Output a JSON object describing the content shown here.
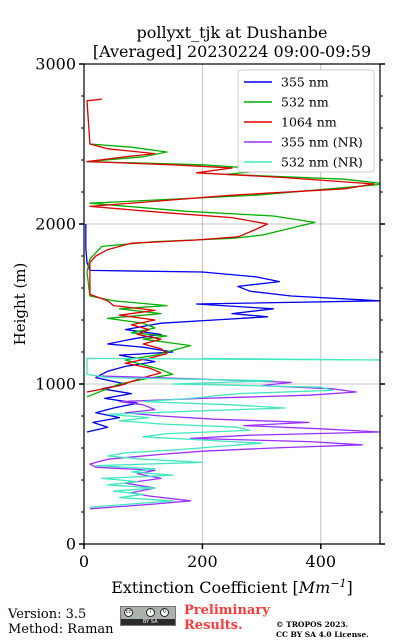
{
  "chart_data": {
    "type": "line",
    "title": "pollyxt_tjk at Dushanbe",
    "subtitle": "[Averaged] 20230224 09:00-09:59",
    "xlabel_main": "Extinction Coefficient [",
    "xlabel_unit": "Mm",
    "xlabel_exp": "−1",
    "xlabel_close": "]",
    "ylabel": "Height (m)",
    "xlim": [
      0,
      500
    ],
    "ylim": [
      0,
      3000
    ],
    "xticks": [
      0,
      200,
      400
    ],
    "yticks": [
      0,
      1000,
      2000,
      3000
    ],
    "xtick_labels": [
      "0",
      "200",
      "400"
    ],
    "ytick_labels": [
      "0",
      "1000",
      "2000",
      "3000"
    ],
    "grid": true,
    "legend_position": "top-right",
    "series": [
      {
        "name": "355 nm",
        "color": "#0000ee",
        "points": [
          [
            5,
            700
          ],
          [
            40,
            730
          ],
          [
            15,
            760
          ],
          [
            60,
            790
          ],
          [
            20,
            820
          ],
          [
            50,
            850
          ],
          [
            90,
            880
          ],
          [
            35,
            910
          ],
          [
            80,
            940
          ],
          [
            30,
            970
          ],
          [
            70,
            1000
          ],
          [
            20,
            1040
          ],
          [
            40,
            1080
          ],
          [
            70,
            1110
          ],
          [
            120,
            1140
          ],
          [
            60,
            1180
          ],
          [
            150,
            1200
          ],
          [
            100,
            1230
          ],
          [
            40,
            1250
          ],
          [
            80,
            1280
          ],
          [
            130,
            1310
          ],
          [
            70,
            1340
          ],
          [
            100,
            1360
          ],
          [
            130,
            1380
          ],
          [
            220,
            1400
          ],
          [
            310,
            1420
          ],
          [
            250,
            1440
          ],
          [
            320,
            1470
          ],
          [
            190,
            1500
          ],
          [
            500,
            1520
          ],
          [
            350,
            1550
          ],
          [
            280,
            1580
          ],
          [
            260,
            1610
          ],
          [
            330,
            1640
          ],
          [
            290,
            1670
          ],
          [
            200,
            1700
          ],
          [
            10,
            1710
          ],
          [
            5,
            1760
          ],
          [
            3,
            1850
          ],
          [
            3,
            2000
          ]
        ]
      },
      {
        "name": "532 nm",
        "color": "#00b000",
        "points": [
          [
            5,
            920
          ],
          [
            60,
            1000
          ],
          [
            100,
            1030
          ],
          [
            150,
            1060
          ],
          [
            130,
            1090
          ],
          [
            100,
            1120
          ],
          [
            70,
            1150
          ],
          [
            120,
            1180
          ],
          [
            150,
            1210
          ],
          [
            180,
            1240
          ],
          [
            140,
            1260
          ],
          [
            100,
            1280
          ],
          [
            140,
            1300
          ],
          [
            80,
            1320
          ],
          [
            120,
            1350
          ],
          [
            100,
            1380
          ],
          [
            40,
            1410
          ],
          [
            130,
            1440
          ],
          [
            60,
            1470
          ],
          [
            140,
            1490
          ],
          [
            50,
            1520
          ],
          [
            10,
            1550
          ],
          [
            5,
            1700
          ],
          [
            10,
            1780
          ],
          [
            20,
            1820
          ],
          [
            30,
            1860
          ],
          [
            120,
            1890
          ],
          [
            250,
            1910
          ],
          [
            300,
            1930
          ],
          [
            390,
            2010
          ],
          [
            320,
            2050
          ],
          [
            170,
            2080
          ],
          [
            10,
            2130
          ],
          [
            290,
            2180
          ],
          [
            510,
            2250
          ],
          [
            440,
            2280
          ],
          [
            240,
            2310
          ],
          [
            320,
            2340
          ],
          [
            200,
            2370
          ],
          [
            5,
            2390
          ],
          [
            100,
            2420
          ],
          [
            140,
            2450
          ],
          [
            80,
            2480
          ],
          [
            10,
            2500
          ]
        ]
      },
      {
        "name": "1064 nm",
        "color": "#dd0000",
        "points": [
          [
            5,
            950
          ],
          [
            60,
            990
          ],
          [
            100,
            1040
          ],
          [
            130,
            1070
          ],
          [
            110,
            1100
          ],
          [
            70,
            1130
          ],
          [
            110,
            1160
          ],
          [
            140,
            1190
          ],
          [
            130,
            1220
          ],
          [
            100,
            1250
          ],
          [
            130,
            1280
          ],
          [
            90,
            1310
          ],
          [
            110,
            1340
          ],
          [
            80,
            1370
          ],
          [
            120,
            1400
          ],
          [
            60,
            1430
          ],
          [
            120,
            1460
          ],
          [
            50,
            1490
          ],
          [
            40,
            1520
          ],
          [
            10,
            1560
          ],
          [
            10,
            1760
          ],
          [
            20,
            1800
          ],
          [
            40,
            1840
          ],
          [
            80,
            1880
          ],
          [
            190,
            1900
          ],
          [
            260,
            1920
          ],
          [
            280,
            1950
          ],
          [
            310,
            2000
          ],
          [
            250,
            2040
          ],
          [
            140,
            2070
          ],
          [
            10,
            2110
          ],
          [
            250,
            2180
          ],
          [
            440,
            2220
          ],
          [
            490,
            2250
          ],
          [
            340,
            2290
          ],
          [
            190,
            2320
          ],
          [
            250,
            2350
          ],
          [
            150,
            2370
          ],
          [
            5,
            2390
          ],
          [
            70,
            2420
          ],
          [
            120,
            2440
          ],
          [
            40,
            2470
          ],
          [
            10,
            2500
          ],
          [
            5,
            2770
          ],
          [
            30,
            2780
          ]
        ]
      },
      {
        "name": "355 nm (NR)",
        "color": "#9b30ff",
        "points": [
          [
            10,
            220
          ],
          [
            120,
            250
          ],
          [
            180,
            270
          ],
          [
            110,
            300
          ],
          [
            80,
            320
          ],
          [
            120,
            350
          ],
          [
            70,
            380
          ],
          [
            130,
            410
          ],
          [
            90,
            440
          ],
          [
            120,
            460
          ],
          [
            20,
            480
          ],
          [
            10,
            500
          ],
          [
            40,
            530
          ],
          [
            130,
            560
          ],
          [
            200,
            580
          ],
          [
            320,
            600
          ],
          [
            470,
            620
          ],
          [
            380,
            640
          ],
          [
            180,
            660
          ],
          [
            280,
            680
          ],
          [
            500,
            700
          ],
          [
            400,
            720
          ],
          [
            270,
            740
          ],
          [
            380,
            760
          ],
          [
            220,
            780
          ],
          [
            130,
            800
          ],
          [
            70,
            820
          ],
          [
            120,
            840
          ],
          [
            100,
            870
          ],
          [
            60,
            890
          ],
          [
            200,
            910
          ],
          [
            380,
            930
          ],
          [
            460,
            950
          ],
          [
            420,
            970
          ],
          [
            300,
            990
          ],
          [
            350,
            1010
          ],
          [
            200,
            1030
          ],
          [
            30,
            1050
          ]
        ]
      },
      {
        "name": "532 nm (NR)",
        "color": "#40e8c0",
        "points": [
          [
            10,
            230
          ],
          [
            80,
            250
          ],
          [
            150,
            270
          ],
          [
            60,
            290
          ],
          [
            100,
            310
          ],
          [
            50,
            330
          ],
          [
            120,
            350
          ],
          [
            40,
            370
          ],
          [
            90,
            390
          ],
          [
            30,
            410
          ],
          [
            150,
            430
          ],
          [
            80,
            450
          ],
          [
            120,
            470
          ],
          [
            20,
            490
          ],
          [
            200,
            510
          ],
          [
            100,
            530
          ],
          [
            40,
            550
          ],
          [
            70,
            570
          ],
          [
            160,
            590
          ],
          [
            230,
            610
          ],
          [
            300,
            630
          ],
          [
            200,
            650
          ],
          [
            100,
            670
          ],
          [
            140,
            690
          ],
          [
            280,
            710
          ],
          [
            260,
            730
          ],
          [
            130,
            750
          ],
          [
            60,
            770
          ],
          [
            110,
            790
          ],
          [
            40,
            810
          ],
          [
            180,
            830
          ],
          [
            340,
            850
          ],
          [
            250,
            870
          ],
          [
            100,
            890
          ],
          [
            180,
            910
          ],
          [
            260,
            940
          ],
          [
            420,
            960
          ],
          [
            400,
            980
          ],
          [
            150,
            1000
          ],
          [
            320,
            1020
          ],
          [
            40,
            1040
          ],
          [
            5,
            1060
          ],
          [
            5,
            1160
          ],
          [
            500,
            1150
          ],
          [
            200,
            1160
          ]
        ]
      }
    ]
  },
  "footer": {
    "version": "Version: 3.5",
    "method": "Method: Raman",
    "prelim_line1": "Preliminary",
    "prelim_line2": "Results.",
    "copyright_line1": "© TROPOS 2023.",
    "copyright_line2": "CC BY SA 4.0 License.",
    "cc_badge_text": "BY SA"
  }
}
